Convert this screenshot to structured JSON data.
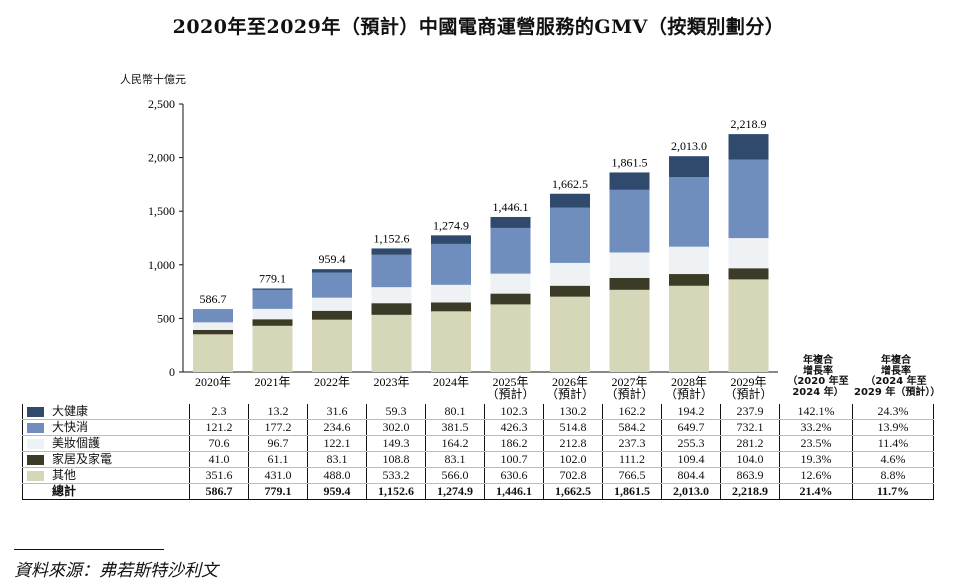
{
  "title": "2020年至2029年（預計）中國電商運營服務的GMV（按類別劃分）",
  "source": "資料來源：弗若斯特沙利文",
  "chart_data": {
    "type": "bar",
    "stacked": true,
    "title": "2020年至2029年（預計）中國電商運營服務的GMV（按類別劃分）",
    "ylabel": "人民幣十億元",
    "ylim": [
      0,
      2500
    ],
    "yticks": [
      "0",
      "500",
      "1,000",
      "1,500",
      "2,000",
      "2,500"
    ],
    "grid": false,
    "categories": [
      "2020年",
      "2021年",
      "2022年",
      "2023年",
      "2024年",
      "2025年",
      "2026年",
      "2027年",
      "2028年",
      "2029年"
    ],
    "category_notes": [
      "",
      "",
      "",
      "",
      "",
      "（預計）",
      "（預計）",
      "（預計）",
      "（預計）",
      "（預計）"
    ],
    "series": [
      {
        "name": "其他",
        "color": "#d6d6b8",
        "values": [
          351.6,
          431.0,
          488.0,
          533.2,
          566.0,
          630.6,
          702.8,
          766.5,
          804.4,
          863.9
        ],
        "cagr": [
          "12.6%",
          "8.8%"
        ]
      },
      {
        "name": "家居及家電",
        "color": "#3c3b28",
        "values": [
          41.0,
          61.1,
          83.1,
          108.8,
          83.1,
          100.7,
          102.0,
          111.2,
          109.4,
          104.0
        ],
        "cagr": [
          "19.3%",
          "4.6%"
        ]
      },
      {
        "name": "美妝個護",
        "color": "#eef2f4",
        "values": [
          70.6,
          96.7,
          122.1,
          149.3,
          164.2,
          186.2,
          212.8,
          237.3,
          255.3,
          281.2
        ],
        "cagr": [
          "23.5%",
          "11.4%"
        ]
      },
      {
        "name": "大快消",
        "color": "#6f8ebe",
        "values": [
          121.2,
          177.2,
          234.6,
          302.0,
          381.5,
          426.3,
          514.8,
          584.2,
          649.7,
          732.1
        ],
        "cagr": [
          "33.2%",
          "13.9%"
        ]
      },
      {
        "name": "大健康",
        "color": "#2f4a6d",
        "values": [
          2.3,
          13.2,
          31.6,
          59.3,
          80.1,
          102.3,
          130.2,
          162.2,
          194.2,
          237.9
        ],
        "cagr": [
          "142.1%",
          "24.3%"
        ]
      }
    ],
    "totals": {
      "name": "總計",
      "labels": [
        "586.7",
        "779.1",
        "959.4",
        "1,152.6",
        "1,274.9",
        "1,446.1",
        "1,662.5",
        "1,861.5",
        "2,013.0",
        "2,218.9"
      ],
      "cagr": [
        "21.4%",
        "11.7%"
      ]
    },
    "cagr_headers": [
      [
        "年複合",
        "增長率",
        "（2020 年至",
        "2024 年）"
      ],
      [
        "年複合",
        "增長率",
        "（2024 年至",
        "2029 年（預計））"
      ]
    ]
  }
}
